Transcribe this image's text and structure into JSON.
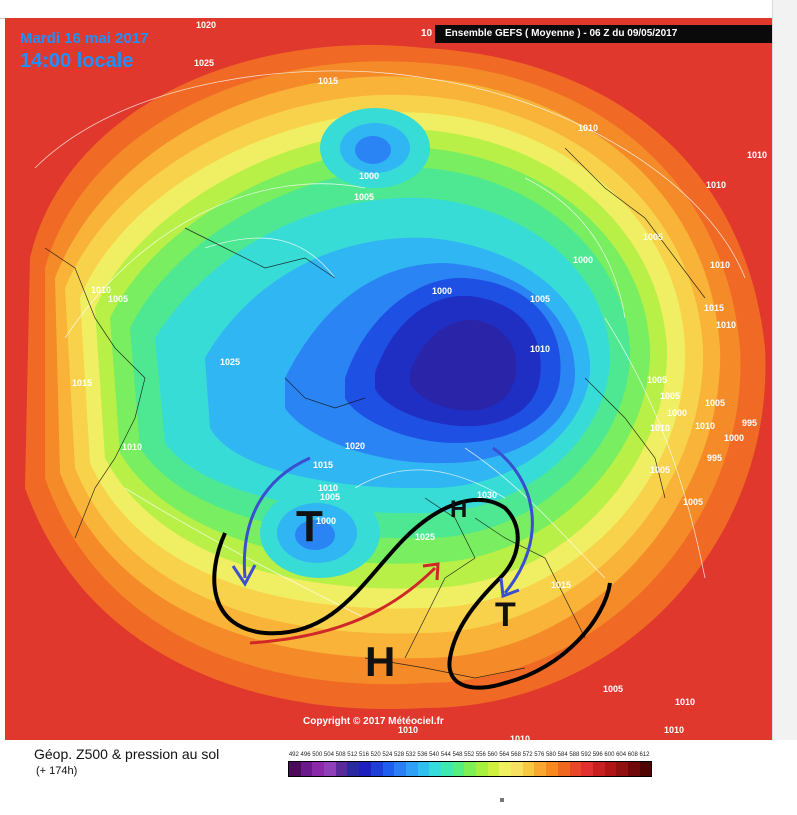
{
  "header": {
    "date": "Mardi 16 mai 2017",
    "local_time": "14:00 locale",
    "run_prefix": "10",
    "run_label": "Ensemble GEFS  ( Moyenne )  -  06 Z du 09/05/2017"
  },
  "copyright": "Copyright © 2017 Météociel.fr",
  "footer": {
    "title": "Géop. Z500 & pression au sol",
    "subtitle": "(+ 174h)"
  },
  "scale": {
    "labels": [
      "492",
      "496",
      "500",
      "504",
      "508",
      "512",
      "516",
      "520",
      "524",
      "528",
      "532",
      "536",
      "540",
      "544",
      "548",
      "552",
      "556",
      "560",
      "564",
      "568",
      "572",
      "576",
      "580",
      "584",
      "588",
      "592",
      "596",
      "600",
      "604",
      "608",
      "612"
    ],
    "colors": [
      "#4b0a5a",
      "#6a1a8a",
      "#8a2aaa",
      "#8f3fb8",
      "#5a2a9a",
      "#2a2aa0",
      "#1f1fc0",
      "#1e3ed8",
      "#1f5ff0",
      "#2a7ff5",
      "#2fa0f5",
      "#2fc0f0",
      "#35dcdc",
      "#3fe8b0",
      "#55ee80",
      "#7ef055",
      "#a8f040",
      "#d0f040",
      "#f0f060",
      "#f8e060",
      "#f8c840",
      "#f8a830",
      "#f88820",
      "#f06820",
      "#e84828",
      "#e03030",
      "#c82020",
      "#b01515",
      "#901010",
      "#700a0a",
      "#500505"
    ]
  },
  "pressure_labels": [
    "1020",
    "1025",
    "1015",
    "1000",
    "1005",
    "1010",
    "1010",
    "1010",
    "1005",
    "1010",
    "1000",
    "1005",
    "1000",
    "1010",
    "1015",
    "1010",
    "1025",
    "1015",
    "1010",
    "1005",
    "1010",
    "1020",
    "1015",
    "1010",
    "1005",
    "1000",
    "1030",
    "1025",
    "1015",
    "1005",
    "1005",
    "1010",
    "1000",
    "1005",
    "995",
    "1000",
    "995",
    "1010",
    "1005",
    "1005",
    "1010",
    "1010",
    "1005",
    "1010",
    "1010"
  ],
  "systems": {
    "trough_west": "T",
    "high_north": "H",
    "trough_east": "T",
    "high_south": "H"
  },
  "colors": {
    "map_background": "#e0382c",
    "header_text": "#1e90ff",
    "run_box": "#0a0a0a",
    "annotation_black": "#000000",
    "arrow_blue": "#3a4fcf",
    "arrow_red": "#d02828"
  }
}
